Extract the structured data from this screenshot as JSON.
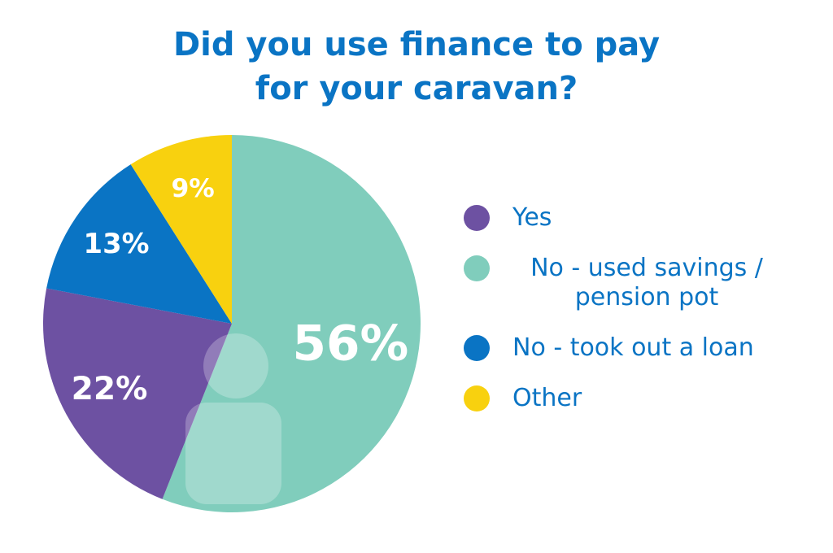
{
  "chart_data": {
    "type": "pie",
    "title": "Did you use finance to pay for your caravan?",
    "categories": [
      "Yes",
      "No - used savings / pension pot",
      "No - took out a loan",
      "Other"
    ],
    "values": [
      22,
      56,
      13,
      9
    ],
    "value_labels": [
      "22%",
      "56%",
      "13%",
      "9%"
    ],
    "colors": [
      "#6d51a2",
      "#80cdbc",
      "#0a74c4",
      "#f8d10f"
    ],
    "legend": "right"
  }
}
